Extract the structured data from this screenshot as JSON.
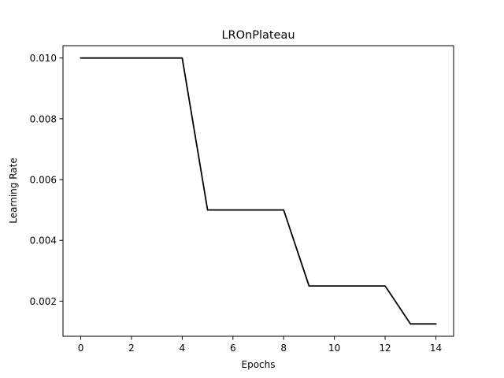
{
  "chart_data": {
    "type": "line",
    "title": "LROnPlateau",
    "xlabel": "Epochs",
    "ylabel": "Learning Rate",
    "xlim": [
      -0.7,
      14.7
    ],
    "ylim": [
      0.00084375,
      0.01040625
    ],
    "xticks": [
      0,
      2,
      4,
      6,
      8,
      10,
      12,
      14
    ],
    "xtick_labels": [
      "0",
      "2",
      "4",
      "6",
      "8",
      "10",
      "12",
      "14"
    ],
    "yticks": [
      0.002,
      0.004,
      0.006,
      0.008,
      0.01
    ],
    "ytick_labels": [
      "0.002",
      "0.004",
      "0.006",
      "0.008",
      "0.010"
    ],
    "grid": false,
    "series": [
      {
        "color": "#000000",
        "x": [
          0,
          1,
          2,
          3,
          4,
          5,
          6,
          7,
          8,
          9,
          10,
          11,
          12,
          13,
          14
        ],
        "y": [
          0.01,
          0.01,
          0.01,
          0.01,
          0.01,
          0.005,
          0.005,
          0.005,
          0.005,
          0.0025,
          0.0025,
          0.0025,
          0.0025,
          0.00125,
          0.00125
        ]
      }
    ]
  }
}
